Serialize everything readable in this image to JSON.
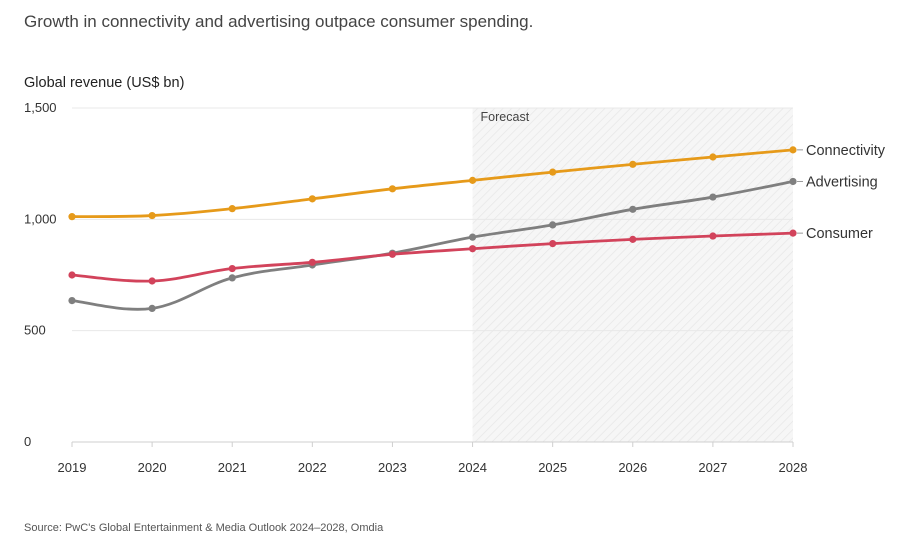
{
  "title": "Growth in connectivity and advertising outpace consumer spending.",
  "source": "Source: PwC's Global Entertainment & Media Outlook 2024–2028, Omdia",
  "chart_data": {
    "type": "line",
    "ylabel": "Global revenue (US$ bn)",
    "xlabel": "",
    "x": [
      "2019",
      "2020",
      "2021",
      "2022",
      "2023",
      "2024",
      "2025",
      "2026",
      "2027",
      "2028"
    ],
    "ylim": [
      0,
      1500
    ],
    "yticks": [
      "0",
      "500",
      "1,000",
      "1,500"
    ],
    "ytick_values": [
      0,
      500,
      1000,
      1500
    ],
    "grid": true,
    "forecast": {
      "label": "Forecast",
      "start": "2024",
      "end": "2028"
    },
    "series": [
      {
        "name": "Connectivity",
        "color": "#e69a1a",
        "values": [
          1012,
          1017,
          1048,
          1092,
          1137,
          1175,
          1212,
          1247,
          1280,
          1312
        ]
      },
      {
        "name": "Advertising",
        "color": "#7f7f7f",
        "values": [
          635,
          600,
          737,
          795,
          848,
          920,
          975,
          1045,
          1100,
          1170
        ]
      },
      {
        "name": "Consumer",
        "color": "#d2435b",
        "values": [
          750,
          723,
          779,
          807,
          843,
          868,
          891,
          910,
          925,
          938
        ]
      }
    ]
  }
}
